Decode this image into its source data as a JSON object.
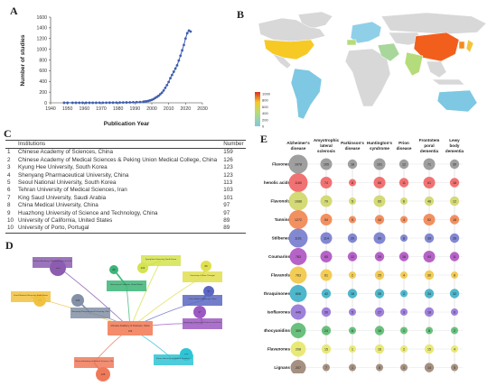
{
  "panels": {
    "a": "A",
    "b": "B",
    "c": "C",
    "d": "D",
    "e": "E"
  },
  "chart_data": [
    {
      "type": "line",
      "xlabel": "Publication Year",
      "ylabel": "Number of studies",
      "xlim": [
        1940,
        2030
      ],
      "ylim": [
        0,
        1600
      ],
      "x_ticks": [
        "1940",
        "1950",
        "1960",
        "1970",
        "1980",
        "1990",
        "2000",
        "2010",
        "2020",
        "2030"
      ],
      "y_ticks": [
        "0",
        "200",
        "400",
        "600",
        "800",
        "1000",
        "1200",
        "1400",
        "1600"
      ],
      "x": [
        1948,
        1950,
        1953,
        1955,
        1957,
        1959,
        1961,
        1963,
        1965,
        1967,
        1969,
        1971,
        1973,
        1975,
        1977,
        1979,
        1981,
        1983,
        1985,
        1987,
        1989,
        1991,
        1993,
        1995,
        1996,
        1997,
        1998,
        1999,
        2000,
        2001,
        2002,
        2003,
        2004,
        2005,
        2006,
        2007,
        2008,
        2009,
        2010,
        2011,
        2012,
        2013,
        2014,
        2015,
        2016,
        2017,
        2018,
        2019,
        2020,
        2021,
        2022,
        2023
      ],
      "y": [
        1,
        1,
        1,
        1,
        1,
        1,
        1,
        1,
        1,
        1,
        2,
        2,
        2,
        3,
        3,
        4,
        5,
        6,
        7,
        8,
        10,
        12,
        15,
        20,
        25,
        30,
        35,
        45,
        55,
        70,
        90,
        110,
        130,
        160,
        190,
        230,
        280,
        330,
        390,
        460,
        520,
        580,
        640,
        700,
        790,
        880,
        980,
        1080,
        1200,
        1300,
        1350,
        1330
      ]
    },
    {
      "type": "heatmap",
      "legend_values": [
        "1000",
        "800",
        "600",
        "400",
        "200",
        "0"
      ],
      "highlighted_countries": [
        "China",
        "USA",
        "South Korea",
        "Iran",
        "Saudi Arabia",
        "Portugal",
        "Spain",
        "India"
      ]
    }
  ],
  "table_c": {
    "headers": [
      "",
      "Institutions",
      "Number"
    ],
    "rows": [
      [
        "1",
        "Chinese Academy of Sciences, China",
        "159"
      ],
      [
        "2",
        "Chinese Academy of Medical Sciences & Peking Union Medical College, China",
        "126"
      ],
      [
        "3",
        "Kyung Hee University, South Korea",
        "123"
      ],
      [
        "4",
        "Shenyang Pharmaceutical University, China",
        "123"
      ],
      [
        "5",
        "Seoul National University, South Korea",
        "113"
      ],
      [
        "6",
        "Tehran University of Medical Sciences, Iran",
        "103"
      ],
      [
        "7",
        "King Saud University, Saudi Arabia",
        "101"
      ],
      [
        "8",
        "China Medical University, China",
        "97"
      ],
      [
        "9",
        "Huazhong University of Science and Technology, China",
        "97"
      ],
      [
        "10",
        "University of California, United States",
        "89"
      ],
      [
        "10",
        "University of Porto, Portugal",
        "89"
      ]
    ]
  },
  "network": {
    "center": {
      "label": "Chinese Academy of Sciences, China",
      "value": "159"
    },
    "nodes": [
      {
        "label": "Chinese Academy of Medical Sciences & Peking Union Medical College, China",
        "value": "126",
        "color": "#8b5cb0"
      },
      {
        "label": "Kyung Hee University, South Korea",
        "value": "123",
        "color": "#d4e34f"
      },
      {
        "label": "University of Porto, Portugal",
        "value": "89",
        "color": "#e0df4f"
      },
      {
        "label": "University of California, United States",
        "value": "89",
        "color": "#3bb577"
      },
      {
        "label": "Huazhong University of Science and Technology, China",
        "value": "97",
        "color": "#9d59c2"
      },
      {
        "label": "Tehran University of Medical Sciences, Iran",
        "value": "103",
        "color": "#2ec4d6"
      },
      {
        "label": "Chinese Academy of Medical Sciences, China",
        "value": "126",
        "color": "#ef7a5a"
      },
      {
        "label": "Seoul National University, South Korea",
        "value": "113",
        "color": "#f1c240"
      },
      {
        "label": "Shenyang Pharmaceutical University, China",
        "value": "123",
        "color": "#8390a6"
      },
      {
        "label": "China Medical University, China",
        "value": "97",
        "color": "#5b67c2"
      }
    ]
  },
  "bubble": {
    "columns": [
      "Alzheimer's disease",
      "Amyotrophic lateral sclerosis",
      "Parkinson's disease",
      "Huntington's syndrome",
      "Prion disease",
      "Frontotem poral dementia",
      "Lewy body dementia"
    ],
    "rows": [
      {
        "label": "Flavones",
        "color": "#9a9a9a",
        "values": [
          1978,
          105,
          18,
          101,
          12,
          71,
          30
        ]
      },
      {
        "label": "Phenolic acids",
        "color": "#f06a6a",
        "values": [
          1180,
          74,
          8,
          66,
          11,
          61,
          18
        ]
      },
      {
        "label": "Flavonols",
        "color": "#d2d86e",
        "values": [
          1088,
          79,
          5,
          65,
          6,
          48,
          12
        ]
      },
      {
        "label": "Tannins",
        "color": "#f18a57",
        "values": [
          1272,
          54,
          5,
          44,
          4,
          52,
          18
        ]
      },
      {
        "label": "Stilbenes",
        "color": "#7b82cf",
        "values": [
          1101,
          114,
          20,
          69,
          8,
          39,
          26
        ]
      },
      {
        "label": "Coumarins",
        "color": "#b25bc4",
        "values": [
          783,
          65,
          12,
          29,
          16,
          93,
          11
        ]
      },
      {
        "label": "Flavanols",
        "color": "#f2c94c",
        "values": [
          763,
          61,
          2,
          25,
          4,
          30,
          8
        ]
      },
      {
        "label": "Anthraquinones",
        "color": "#45b3c9",
        "values": [
          606,
          42,
          18,
          39,
          2,
          34,
          32
        ]
      },
      {
        "label": "Isoflavones",
        "color": "#9a7ad8",
        "values": [
          446,
          30,
          5,
          27,
          3,
          18,
          6
        ]
      },
      {
        "label": "Anthocyanidins",
        "color": "#63bd77",
        "values": [
          309,
          24,
          6,
          16,
          1,
          8,
          2
        ]
      },
      {
        "label": "Flavanones",
        "color": "#e8e870",
        "values": [
          208,
          15,
          1,
          16,
          2,
          15,
          4
        ]
      },
      {
        "label": "Lignans",
        "color": "#a08a7a",
        "values": [
          207,
          7,
          1,
          8,
          1,
          14,
          5
        ]
      }
    ]
  }
}
